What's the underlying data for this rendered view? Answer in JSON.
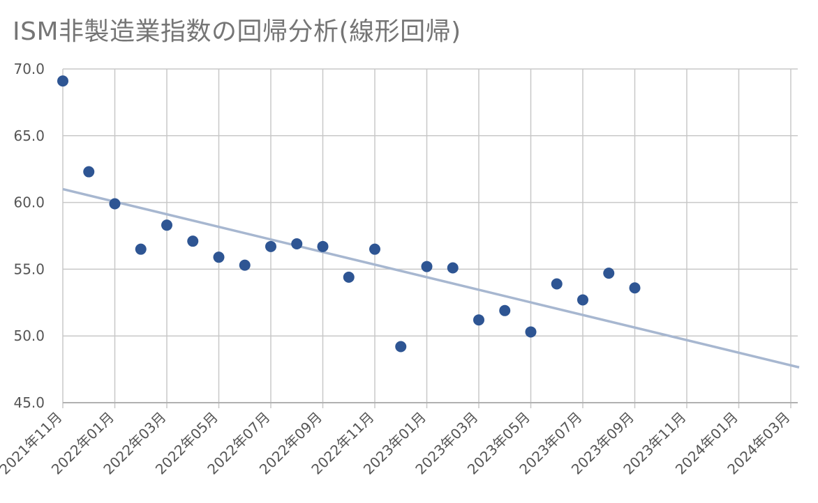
{
  "chart_data": {
    "type": "scatter",
    "title": "ISM非製造業指数の回帰分析(線形回帰)",
    "ylim": [
      45.0,
      70.0
    ],
    "yticks": [
      "45.0",
      "50.0",
      "55.0",
      "60.0",
      "65.0",
      "70.0"
    ],
    "xrange": [
      "2021-11",
      "2024-03"
    ],
    "xticks": [
      "2021年11月",
      "2022年01月",
      "2022年03月",
      "2022年05月",
      "2022年07月",
      "2022年09月",
      "2022年11月",
      "2023年01月",
      "2023年03月",
      "2023年05月",
      "2023年07月",
      "2023年09月",
      "2023年11月",
      "2024年01月",
      "2024年03月"
    ],
    "grid": true,
    "point_color": "#2e5593",
    "trendline_color": "#a7b7d0",
    "series": [
      {
        "x": [
          "2021-11",
          "2021-12",
          "2022-01",
          "2022-02",
          "2022-03",
          "2022-04",
          "2022-05",
          "2022-06",
          "2022-07",
          "2022-08",
          "2022-09",
          "2022-10",
          "2022-11",
          "2022-12",
          "2023-01",
          "2023-02",
          "2023-03",
          "2023-04",
          "2023-05",
          "2023-06",
          "2023-07",
          "2023-08",
          "2023-09"
        ],
        "y": [
          69.1,
          62.3,
          59.9,
          56.5,
          58.3,
          57.1,
          55.9,
          55.3,
          56.7,
          56.9,
          56.7,
          54.4,
          56.5,
          49.2,
          55.2,
          55.1,
          51.2,
          51.9,
          50.3,
          53.9,
          52.7,
          54.7,
          53.6
        ]
      }
    ],
    "trendline": {
      "type": "linear",
      "start": [
        "2021-11",
        61.0
      ],
      "end": [
        "2024-03",
        47.8
      ]
    }
  }
}
